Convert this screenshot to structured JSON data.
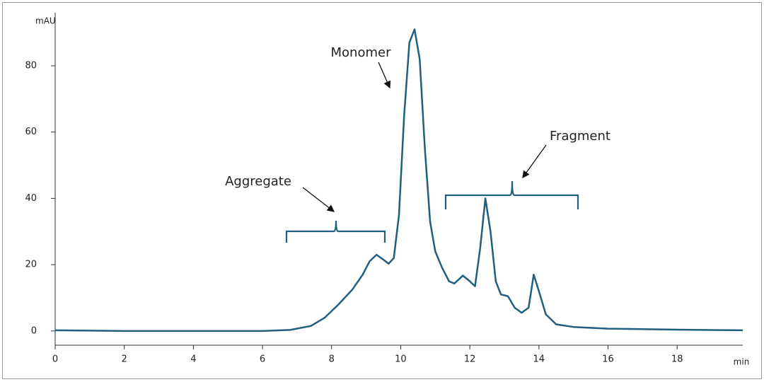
{
  "chart_data": {
    "type": "line",
    "x_label": "min",
    "y_label": "mAU",
    "x": [
      0,
      2,
      6,
      6.8,
      7.4,
      7.8,
      8.2,
      8.6,
      8.9,
      9.1,
      9.3,
      9.5,
      9.65,
      9.8,
      9.95,
      10.1,
      10.25,
      10.4,
      10.55,
      10.7,
      10.85,
      11.0,
      11.2,
      11.4,
      11.55,
      11.8,
      12.0,
      12.15,
      12.3,
      12.45,
      12.6,
      12.75,
      12.9,
      13.1,
      13.3,
      13.5,
      13.7,
      13.85,
      14.0,
      14.2,
      14.5,
      15,
      16,
      18,
      19.9
    ],
    "values": [
      0.2,
      0,
      0,
      0.3,
      1.5,
      4,
      8,
      12.5,
      17,
      21,
      23,
      21.5,
      20.3,
      22,
      35,
      65,
      87,
      91,
      82,
      55,
      33,
      24,
      19,
      15,
      14.3,
      16.7,
      15,
      13.5,
      25,
      40,
      30,
      15,
      11,
      10.5,
      7,
      5.5,
      7,
      17,
      12,
      5,
      2,
      1.2,
      0.7,
      0.4,
      0.2
    ],
    "color": "#1f5f80",
    "xlim": [
      0,
      19.9
    ],
    "ylim": [
      -4.3,
      96
    ],
    "xticks": [
      0,
      2,
      4,
      6,
      8,
      10,
      12,
      14,
      16,
      18
    ],
    "yticks": [
      0,
      20,
      40,
      60,
      80
    ],
    "annotations": [
      "Monomer",
      "Aggregate",
      "Fragment"
    ],
    "annotation_color": "#e8262b"
  }
}
